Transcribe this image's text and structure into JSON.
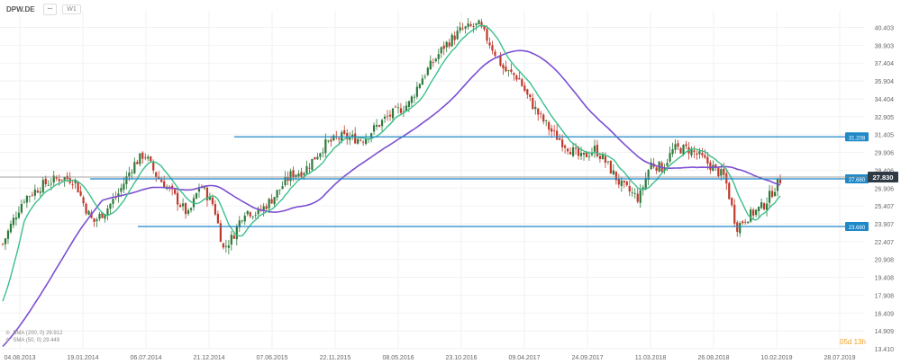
{
  "toolbar": {
    "symbol": "DPW.DE",
    "btn1": "ꟷ",
    "timeframe": "W1"
  },
  "legend": {
    "sma200": "SMA (200, 0) 29.912",
    "sma50": "SMA (50, 0) 29.449"
  },
  "timer": "05d 13h",
  "chart_data": {
    "type": "candlestick",
    "title": "DPW.DE",
    "timeframe": "W1",
    "y_ticks": [
      "13.410",
      "14.909",
      "16.409",
      "17.908",
      "19.408",
      "20.908",
      "22.407",
      "23.907",
      "25.407",
      "26.906",
      "28.406",
      "29.906",
      "31.405",
      "32.905",
      "34.404",
      "35.904",
      "37.404",
      "38.903",
      "40.403"
    ],
    "x_ticks": [
      "04.08.2013",
      "19.01.2014",
      "06.07.2014",
      "21.12.2014",
      "07.06.2015",
      "22.11.2015",
      "08.05.2016",
      "23.10.2016",
      "09.04.2017",
      "24.09.2017",
      "11.03.2018",
      "26.08.2018",
      "10.02.2019",
      "28.07.2019"
    ],
    "ylim": [
      13.41,
      41.8
    ],
    "horizontal_levels": [
      {
        "label": "31.208",
        "value": 31.208,
        "color": "#1e88c8"
      },
      {
        "label": "27.680",
        "value": 27.68,
        "color": "#1e88c8"
      },
      {
        "label": "23.680",
        "value": 23.68,
        "color": "#1e88c8"
      }
    ],
    "current_price": {
      "label": "27.830",
      "value": 27.83
    },
    "up_color": "#2d7a3a",
    "down_color": "#c0392b",
    "series": [
      {
        "name": "SMA (200, 0) 29.912",
        "color": "#7b4fd1"
      },
      {
        "name": "SMA (50, 0) 29.449",
        "color": "#3cc08a"
      }
    ]
  }
}
